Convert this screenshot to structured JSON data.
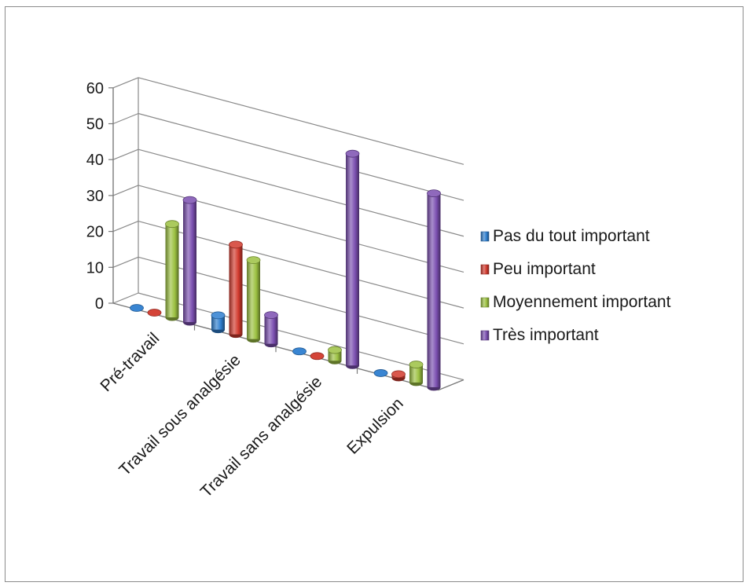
{
  "chart_data": {
    "type": "bar",
    "style": "3d-cylinder",
    "title": "",
    "xlabel": "",
    "ylabel": "",
    "categories": [
      "Pré-travail",
      "Travail sous analgésie",
      "Travail sans analgésie",
      "Expulsion"
    ],
    "ylim": [
      0,
      60
    ],
    "yticks": [
      0,
      10,
      20,
      30,
      40,
      50,
      60
    ],
    "grid": true,
    "legend_position": "right",
    "series": [
      {
        "name": "Pas du tout important",
        "color": "#2f7fd0",
        "values": [
          0,
          4,
          0,
          0
        ]
      },
      {
        "name": "Peu important",
        "color": "#d23a2e",
        "values": [
          0,
          25,
          0,
          1
        ]
      },
      {
        "name": "Moyennement important",
        "color": "#9cc142",
        "values": [
          26,
          22,
          3,
          5
        ]
      },
      {
        "name": "Très important",
        "color": "#7b4fb0",
        "values": [
          34,
          8,
          59,
          54
        ]
      }
    ]
  }
}
